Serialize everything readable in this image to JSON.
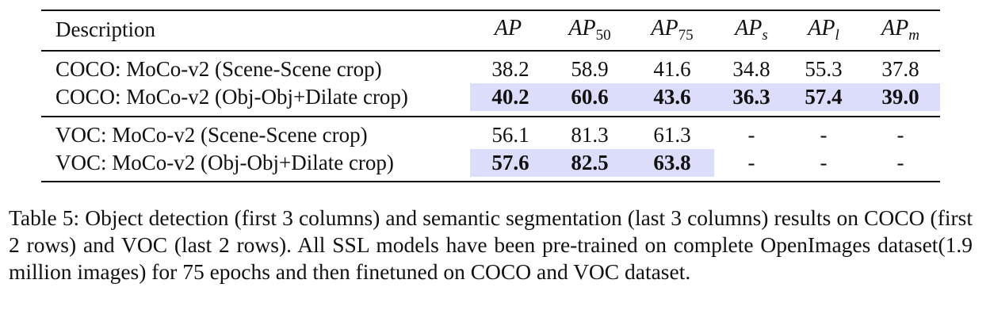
{
  "table": {
    "header": {
      "description": "Description",
      "metrics": [
        {
          "base": "AP",
          "sub": ""
        },
        {
          "base": "AP",
          "sub": "50"
        },
        {
          "base": "AP",
          "sub": "75"
        },
        {
          "base": "AP",
          "sub": "s"
        },
        {
          "base": "AP",
          "sub": "l"
        },
        {
          "base": "AP",
          "sub": "m"
        }
      ]
    },
    "rows": [
      {
        "description": "COCO: MoCo-v2 (Scene-Scene crop)",
        "values": [
          "38.2",
          "58.9",
          "41.6",
          "34.8",
          "55.3",
          "37.8"
        ]
      },
      {
        "description": "COCO: MoCo-v2 (Obj-Obj+Dilate crop)",
        "values": [
          "40.2",
          "60.6",
          "43.6",
          "36.3",
          "57.4",
          "39.0"
        ]
      },
      {
        "description": "VOC: MoCo-v2 (Scene-Scene crop)",
        "values": [
          "56.1",
          "81.3",
          "61.3",
          "-",
          "-",
          "-"
        ]
      },
      {
        "description": "VOC: MoCo-v2 (Obj-Obj+Dilate crop)",
        "values": [
          "57.6",
          "82.5",
          "63.8",
          "-",
          "-",
          "-"
        ]
      }
    ],
    "highlight_color": "#dcdcfb"
  },
  "caption": {
    "text": "Table 5: Object detection (first 3 columns) and semantic segmentation (last 3 columns) results on COCO (first 2 rows) and VOC (last 2 rows). All SSL models have been pre-trained on complete OpenImages dataset(1.9 million images) for 75 epochs and then finetuned on COCO and VOC dataset."
  }
}
